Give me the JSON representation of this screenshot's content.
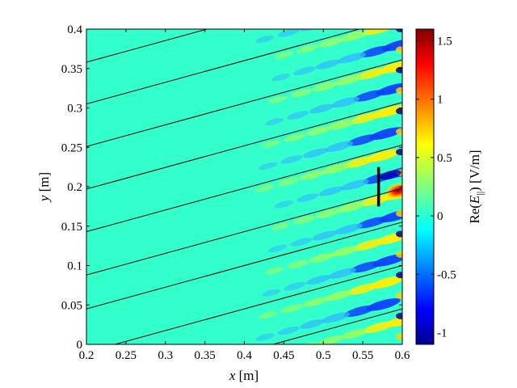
{
  "chart_data": {
    "type": "heatmap",
    "xlabel": {
      "var": "x",
      "unit": " [m]"
    },
    "ylabel": {
      "var": "y",
      "unit": " [m]"
    },
    "colorbar_label": {
      "pre": "Re(",
      "var": "E",
      "sub": "||",
      "post": ") [V/m]"
    },
    "xlim": [
      0.2,
      0.6
    ],
    "ylim": [
      0,
      0.4
    ],
    "clim": [
      -1.1,
      1.6
    ],
    "x_ticks": [
      "0.2",
      "0.25",
      "0.3",
      "0.35",
      "0.4",
      "0.45",
      "0.5",
      "0.55",
      "0.6"
    ],
    "y_ticks": [
      "0",
      "0.05",
      "0.1",
      "0.15",
      "0.2",
      "0.25",
      "0.3",
      "0.35",
      "0.4"
    ],
    "colorbar_ticks": [
      "-1",
      "-0.5",
      "0",
      "0.5",
      "1",
      "1.5"
    ],
    "colormap": "jet",
    "field_lines": {
      "slope": 0.275,
      "intercepts": [
        -0.12,
        -0.065,
        -0.01,
        0.033,
        0.088,
        0.142,
        0.196,
        0.25,
        0.303,
        0.357
      ]
    },
    "antenna": {
      "x": 0.57,
      "y_range": [
        0.175,
        0.225
      ],
      "color": "#000000"
    },
    "hot_spot": {
      "x": 0.595,
      "y": 0.195,
      "value": 1.6
    }
  }
}
